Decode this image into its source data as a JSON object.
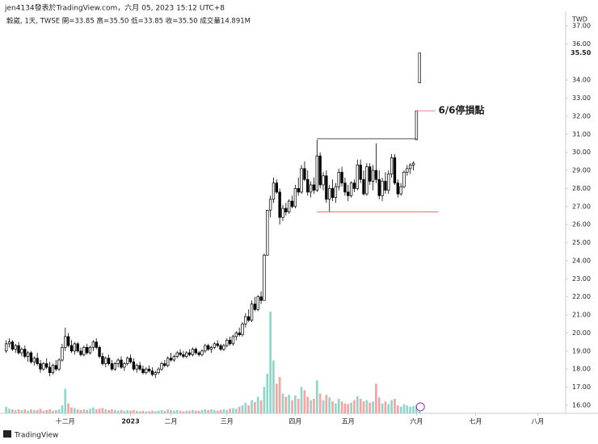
{
  "chart_data": {
    "type": "candlestick",
    "header": "jen4134發表於TradingView.com，六月 05, 2023 15:12 UTC+8",
    "legend": "穀崴, 1天, TWSE  開=33.85  高=35.50  低=33.85  收=35.50  成交量14.891M",
    "currency": "TWD",
    "last_price": {
      "value": 35.5,
      "label": "35.50"
    },
    "brand": "TradingView",
    "up_color": "#ffffff",
    "down_color": "#000000",
    "border_color": "#000000",
    "volume_up_color": "#8fd6cb",
    "volume_down_color": "#f5a3a3",
    "ohlc": [
      [
        19.0,
        19.6,
        18.9,
        19.4
      ],
      [
        19.4,
        19.7,
        19.2,
        19.5
      ],
      [
        19.5,
        19.6,
        19.0,
        19.1
      ],
      [
        19.1,
        19.4,
        18.9,
        19.3
      ],
      [
        19.3,
        19.5,
        18.8,
        18.9
      ],
      [
        18.9,
        19.2,
        18.7,
        19.1
      ],
      [
        19.1,
        19.3,
        18.6,
        18.7
      ],
      [
        18.7,
        19.0,
        18.4,
        18.9
      ],
      [
        18.9,
        19.0,
        18.3,
        18.4
      ],
      [
        18.4,
        18.7,
        18.2,
        18.6
      ],
      [
        18.6,
        18.9,
        18.2,
        18.3
      ],
      [
        18.3,
        18.5,
        17.8,
        18.0
      ],
      [
        18.0,
        18.4,
        17.9,
        18.3
      ],
      [
        18.3,
        18.6,
        18.0,
        18.1
      ],
      [
        18.1,
        18.4,
        17.6,
        17.8
      ],
      [
        17.8,
        18.3,
        17.7,
        18.2
      ],
      [
        18.2,
        18.5,
        17.9,
        18.0
      ],
      [
        18.0,
        18.6,
        17.9,
        18.5
      ],
      [
        18.5,
        19.4,
        18.4,
        19.2
      ],
      [
        19.2,
        20.3,
        19.0,
        19.8
      ],
      [
        19.8,
        20.0,
        19.2,
        19.3
      ],
      [
        19.3,
        19.6,
        18.9,
        19.0
      ],
      [
        19.0,
        19.5,
        18.8,
        19.4
      ],
      [
        19.4,
        19.5,
        18.9,
        19.0
      ],
      [
        19.0,
        19.2,
        18.7,
        18.8
      ],
      [
        18.8,
        19.3,
        18.7,
        19.2
      ],
      [
        19.2,
        19.4,
        18.8,
        18.9
      ],
      [
        18.9,
        19.3,
        18.8,
        19.2
      ],
      [
        19.2,
        19.6,
        19.0,
        19.5
      ],
      [
        19.5,
        19.7,
        19.1,
        19.2
      ],
      [
        19.2,
        19.3,
        18.6,
        18.7
      ],
      [
        18.7,
        18.9,
        18.2,
        18.3
      ],
      [
        18.3,
        18.7,
        18.1,
        18.6
      ],
      [
        18.6,
        18.8,
        18.2,
        18.3
      ],
      [
        18.3,
        18.5,
        17.9,
        18.0
      ],
      [
        18.0,
        18.4,
        17.9,
        18.3
      ],
      [
        18.3,
        18.6,
        18.1,
        18.5
      ],
      [
        18.5,
        18.7,
        18.0,
        18.1
      ],
      [
        18.1,
        18.4,
        17.9,
        18.3
      ],
      [
        18.3,
        18.7,
        18.2,
        18.6
      ],
      [
        18.6,
        18.8,
        18.3,
        18.4
      ],
      [
        18.4,
        18.6,
        17.9,
        18.0
      ],
      [
        18.0,
        18.3,
        17.8,
        18.2
      ],
      [
        18.2,
        18.4,
        17.9,
        18.0
      ],
      [
        18.0,
        18.2,
        17.7,
        17.8
      ],
      [
        17.8,
        18.1,
        17.7,
        18.0
      ],
      [
        18.0,
        18.2,
        17.8,
        17.9
      ],
      [
        17.9,
        18.1,
        17.6,
        17.7
      ],
      [
        17.7,
        17.9,
        17.5,
        17.8
      ],
      [
        17.8,
        18.1,
        17.7,
        18.0
      ],
      [
        18.0,
        18.4,
        17.9,
        18.3
      ],
      [
        18.3,
        18.5,
        18.1,
        18.2
      ],
      [
        18.2,
        18.7,
        18.1,
        18.6
      ],
      [
        18.6,
        18.9,
        18.4,
        18.5
      ],
      [
        18.5,
        18.8,
        18.4,
        18.7
      ],
      [
        18.7,
        19.0,
        18.6,
        18.9
      ],
      [
        18.9,
        19.1,
        18.7,
        18.8
      ],
      [
        18.8,
        19.0,
        18.6,
        18.7
      ],
      [
        18.7,
        19.0,
        18.6,
        18.9
      ],
      [
        18.9,
        19.1,
        18.7,
        18.8
      ],
      [
        18.8,
        19.2,
        18.7,
        19.1
      ],
      [
        19.1,
        19.2,
        18.8,
        18.9
      ],
      [
        18.9,
        19.0,
        18.7,
        18.8
      ],
      [
        18.8,
        19.1,
        18.7,
        19.0
      ],
      [
        19.0,
        19.4,
        18.9,
        19.3
      ],
      [
        19.3,
        19.4,
        19.0,
        19.1
      ],
      [
        19.1,
        19.3,
        18.9,
        19.2
      ],
      [
        19.2,
        19.5,
        19.1,
        19.4
      ],
      [
        19.4,
        19.6,
        19.2,
        19.3
      ],
      [
        19.3,
        19.4,
        19.0,
        19.1
      ],
      [
        19.1,
        19.4,
        19.0,
        19.3
      ],
      [
        19.3,
        19.7,
        19.2,
        19.6
      ],
      [
        19.6,
        19.8,
        19.3,
        19.4
      ],
      [
        19.4,
        19.9,
        19.3,
        19.8
      ],
      [
        19.8,
        20.1,
        19.6,
        20.0
      ],
      [
        20.0,
        20.3,
        19.8,
        19.9
      ],
      [
        19.9,
        20.6,
        19.8,
        20.5
      ],
      [
        20.5,
        21.1,
        20.3,
        20.9
      ],
      [
        20.9,
        21.3,
        20.6,
        20.7
      ],
      [
        20.7,
        21.8,
        20.6,
        21.6
      ],
      [
        21.6,
        22.0,
        21.2,
        21.3
      ],
      [
        21.3,
        22.1,
        21.2,
        22.0
      ],
      [
        22.0,
        22.3,
        21.6,
        21.8
      ],
      [
        21.8,
        24.4,
        21.8,
        24.3
      ],
      [
        24.3,
        26.8,
        24.3,
        26.8
      ],
      [
        26.8,
        27.6,
        26.4,
        27.4
      ],
      [
        27.4,
        28.6,
        27.2,
        28.3
      ],
      [
        28.3,
        28.5,
        27.7,
        27.8
      ],
      [
        27.8,
        28.0,
        26.0,
        26.4
      ],
      [
        26.4,
        27.1,
        26.2,
        26.9
      ],
      [
        26.9,
        27.2,
        26.5,
        26.7
      ],
      [
        26.7,
        27.4,
        26.6,
        27.3
      ],
      [
        27.3,
        27.6,
        26.9,
        27.0
      ],
      [
        27.0,
        28.2,
        26.9,
        28.0
      ],
      [
        28.0,
        28.6,
        27.6,
        27.8
      ],
      [
        27.8,
        29.3,
        27.7,
        29.1
      ],
      [
        29.1,
        29.5,
        28.4,
        28.5
      ],
      [
        28.5,
        29.0,
        27.6,
        27.8
      ],
      [
        27.8,
        28.4,
        27.5,
        28.2
      ],
      [
        28.2,
        28.6,
        27.7,
        27.9
      ],
      [
        27.9,
        30.7,
        27.8,
        29.8
      ],
      [
        29.8,
        30.0,
        28.0,
        28.2
      ],
      [
        28.2,
        28.9,
        27.9,
        28.7
      ],
      [
        28.7,
        29.0,
        27.2,
        27.4
      ],
      [
        27.4,
        28.2,
        26.7,
        28.0
      ],
      [
        28.0,
        28.5,
        27.3,
        27.5
      ],
      [
        27.5,
        28.3,
        27.2,
        28.1
      ],
      [
        28.1,
        29.1,
        27.9,
        28.9
      ],
      [
        28.9,
        29.2,
        28.1,
        28.3
      ],
      [
        28.3,
        28.6,
        27.6,
        27.8
      ],
      [
        27.8,
        28.2,
        27.3,
        27.6
      ],
      [
        27.6,
        28.4,
        27.5,
        28.3
      ],
      [
        28.3,
        28.5,
        27.8,
        28.0
      ],
      [
        28.0,
        29.6,
        27.9,
        29.3
      ],
      [
        29.3,
        29.6,
        28.3,
        28.5
      ],
      [
        28.5,
        29.0,
        27.6,
        27.7
      ],
      [
        27.7,
        29.4,
        27.6,
        29.2
      ],
      [
        29.2,
        29.4,
        28.2,
        28.4
      ],
      [
        28.4,
        29.3,
        27.9,
        29.0
      ],
      [
        29.0,
        30.5,
        28.3,
        28.5
      ],
      [
        28.5,
        29.0,
        27.4,
        27.6
      ],
      [
        27.6,
        28.6,
        27.3,
        28.4
      ],
      [
        28.4,
        28.9,
        27.7,
        27.9
      ],
      [
        27.9,
        29.0,
        27.7,
        28.8
      ],
      [
        28.8,
        29.9,
        28.6,
        29.7
      ],
      [
        29.7,
        29.9,
        28.2,
        28.3
      ],
      [
        28.3,
        28.5,
        27.5,
        27.7
      ],
      [
        27.7,
        28.3,
        27.6,
        28.1
      ],
      [
        28.1,
        29.0,
        28.0,
        28.9
      ],
      [
        28.9,
        29.3,
        28.7,
        29.1
      ],
      [
        29.1,
        29.4,
        28.8,
        29.3
      ],
      [
        29.3,
        29.5,
        29.0,
        29.4
      ],
      [
        30.7,
        32.3,
        30.7,
        32.3
      ],
      [
        33.85,
        35.5,
        33.85,
        35.5
      ]
    ],
    "volume": [
      10,
      7,
      6,
      5,
      6,
      5,
      6,
      4,
      6,
      5,
      5,
      7,
      4,
      5,
      6,
      4,
      5,
      6,
      12,
      37,
      15,
      9,
      8,
      6,
      5,
      6,
      5,
      7,
      9,
      6,
      7,
      8,
      6,
      5,
      6,
      5,
      4,
      5,
      4,
      5,
      4,
      5,
      4,
      3,
      4,
      3,
      3,
      4,
      3,
      4,
      5,
      4,
      6,
      5,
      4,
      5,
      4,
      3,
      4,
      4,
      5,
      4,
      4,
      5,
      6,
      5,
      6,
      5,
      4,
      5,
      6,
      5,
      7,
      8,
      7,
      10,
      12,
      16,
      12,
      20,
      17,
      25,
      20,
      40,
      60,
      154,
      80,
      45,
      55,
      30,
      25,
      28,
      20,
      27,
      22,
      40,
      35,
      25,
      20,
      22,
      50,
      30,
      20,
      28,
      24,
      18,
      15,
      22,
      18,
      15,
      14,
      16,
      20,
      26,
      22,
      18,
      20,
      16,
      18,
      45,
      24,
      15,
      18,
      14,
      20,
      22,
      12,
      10,
      14,
      12,
      10,
      11,
      12,
      14.891
    ],
    "vlim": [
      0,
      165
    ],
    "xlim": [
      -2,
      180
    ],
    "xticks": [
      {
        "value": 19,
        "label": "十二月"
      },
      {
        "value": 40,
        "label": "2023"
      },
      {
        "value": 53,
        "label": "二月"
      },
      {
        "value": 71,
        "label": "三月"
      },
      {
        "value": 93,
        "label": "四月"
      },
      {
        "value": 110,
        "label": "五月"
      },
      {
        "value": 132,
        "label": "六月"
      },
      {
        "value": 151,
        "label": "七月"
      },
      {
        "value": 171,
        "label": "八月"
      }
    ],
    "ylim": [
      15.55,
      37.54
    ],
    "yticks": [
      {
        "value": 16,
        "label": "16.00"
      },
      {
        "value": 17,
        "label": "17.00"
      },
      {
        "value": 18,
        "label": "18.00"
      },
      {
        "value": 19,
        "label": "19.00"
      },
      {
        "value": 20,
        "label": "20.00"
      },
      {
        "value": 21,
        "label": "21.00"
      },
      {
        "value": 22,
        "label": "22.00"
      },
      {
        "value": 23,
        "label": "23.00"
      },
      {
        "value": 24,
        "label": "24.00"
      },
      {
        "value": 25,
        "label": "25.00"
      },
      {
        "value": 26,
        "label": "26.00"
      },
      {
        "value": 27,
        "label": "27.00"
      },
      {
        "value": 28,
        "label": "28.00"
      },
      {
        "value": 29,
        "label": "29.00"
      },
      {
        "value": 30,
        "label": "30.00"
      },
      {
        "value": 31,
        "label": "31.00"
      },
      {
        "value": 32,
        "label": "32.00"
      },
      {
        "value": 33,
        "label": "33.00"
      },
      {
        "value": 34,
        "label": "34.00"
      },
      {
        "value": 36,
        "label": "36.00"
      },
      {
        "value": 37,
        "label": "37.00"
      }
    ],
    "lines": [
      {
        "value": 30.75,
        "from": 100,
        "to": 132,
        "color": "#555555"
      },
      {
        "value": 26.7,
        "from": 100,
        "to": 139,
        "color": "#e57373"
      },
      {
        "value": 32.3,
        "from": 132,
        "to": 138,
        "color": "#f08080",
        "label": "6/6停損點"
      }
    ]
  }
}
